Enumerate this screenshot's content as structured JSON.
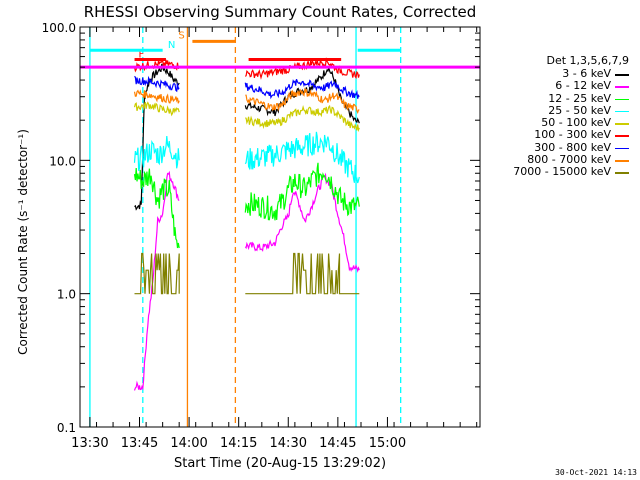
{
  "chart_data": {
    "type": "line",
    "title": "RHESSI Observing Summary Count Rates, Corrected",
    "ylabel": "Corrected Count Rate (s⁻¹ detector⁻¹)",
    "xlabel": "Start Time (20-Aug-15 13:29:02)",
    "ylog": true,
    "ylim": [
      0.1,
      100
    ],
    "xlim_min": [
      -3,
      118
    ],
    "x_unit": "minutes after 13:30",
    "y_ticks": [
      "0.1",
      "1.0",
      "10.0",
      "100.0"
    ],
    "y_tick_values": [
      0.1,
      1,
      10,
      100
    ],
    "x_ticks": [
      {
        "min": 0,
        "label": "13:30"
      },
      {
        "min": 15,
        "label": "13:45"
      },
      {
        "min": 30,
        "label": "14:00"
      },
      {
        "min": 45,
        "label": "14:15"
      },
      {
        "min": 60,
        "label": "14:30"
      },
      {
        "min": 75,
        "label": "14:45"
      },
      {
        "min": 90,
        "label": "15:00"
      }
    ],
    "legend_header": "Det 1,3,5,6,7,9",
    "legend_placement": "right",
    "series": [
      {
        "name": "3 - 6 keV",
        "color": "#000000",
        "seg1": [
          [
            13.5,
            4.5
          ],
          [
            15.5,
            4.6
          ],
          [
            16.5,
            30
          ],
          [
            18,
            40
          ],
          [
            20,
            45
          ],
          [
            22,
            50
          ],
          [
            24,
            45
          ],
          [
            25.5,
            40
          ],
          [
            27,
            38
          ]
        ],
        "seg2": [
          [
            47,
            26
          ],
          [
            53,
            24
          ],
          [
            56,
            23
          ],
          [
            60,
            30
          ],
          [
            63,
            33
          ],
          [
            66,
            34
          ],
          [
            70,
            42
          ],
          [
            72,
            50
          ],
          [
            74,
            40
          ],
          [
            76,
            28
          ],
          [
            80,
            20
          ],
          [
            81.5,
            19
          ]
        ]
      },
      {
        "name": "6 - 12 keV",
        "color": "#ff00ff",
        "seg1": [
          [
            13.5,
            0.2
          ],
          [
            16,
            0.2
          ],
          [
            17.5,
            0.6
          ],
          [
            19,
            1.2
          ],
          [
            20.5,
            3.5
          ],
          [
            22,
            4
          ],
          [
            23.5,
            8
          ],
          [
            25,
            7
          ],
          [
            27,
            5
          ]
        ],
        "seg2": [
          [
            47,
            2.3
          ],
          [
            52,
            2.2
          ],
          [
            56,
            2.4
          ],
          [
            58,
            3.2
          ],
          [
            60,
            3.8
          ],
          [
            61.5,
            6
          ],
          [
            63,
            5
          ],
          [
            65,
            3.5
          ],
          [
            67,
            4.5
          ],
          [
            69,
            6
          ],
          [
            71,
            7.5
          ],
          [
            73,
            6.5
          ],
          [
            75,
            4
          ],
          [
            77,
            2.5
          ],
          [
            78.5,
            1.6
          ],
          [
            81.5,
            1.5
          ]
        ]
      },
      {
        "name": "12 - 25 keV",
        "color": "#00ff00",
        "seg1": [
          [
            13.5,
            8
          ],
          [
            16,
            7
          ],
          [
            18.5,
            8
          ],
          [
            20.5,
            5
          ],
          [
            22,
            6
          ],
          [
            24,
            6
          ],
          [
            26,
            2.5
          ],
          [
            27,
            2.2
          ]
        ],
        "seg2": [
          [
            47,
            4.8
          ],
          [
            53,
            4.5
          ],
          [
            56,
            4.2
          ],
          [
            58,
            4.8
          ],
          [
            60,
            6
          ],
          [
            62,
            7
          ],
          [
            65,
            6
          ],
          [
            68,
            7.5
          ],
          [
            71,
            8.5
          ],
          [
            73,
            7
          ],
          [
            76,
            5
          ],
          [
            79,
            4.5
          ],
          [
            81.5,
            4.5
          ]
        ]
      },
      {
        "name": "25 - 50 keV",
        "color": "#00ffff",
        "seg1": [
          [
            13.5,
            10
          ],
          [
            16,
            10.5
          ],
          [
            18.5,
            12
          ],
          [
            21,
            11
          ],
          [
            23,
            13
          ],
          [
            25,
            12
          ],
          [
            27,
            10
          ]
        ],
        "seg2": [
          [
            47,
            10
          ],
          [
            52,
            10.5
          ],
          [
            56,
            11
          ],
          [
            60,
            12
          ],
          [
            64,
            12.5
          ],
          [
            68,
            13.5
          ],
          [
            72,
            14
          ],
          [
            76,
            10
          ],
          [
            80,
            8
          ],
          [
            81.5,
            7.5
          ]
        ]
      },
      {
        "name": "50 - 100 keV",
        "color": "#cccc00",
        "seg1": [
          [
            13.5,
            25
          ],
          [
            18,
            26
          ],
          [
            22,
            24
          ],
          [
            27,
            23
          ]
        ],
        "seg2": [
          [
            47,
            20
          ],
          [
            53,
            19
          ],
          [
            57,
            19
          ],
          [
            61,
            22
          ],
          [
            65,
            24
          ],
          [
            69,
            23
          ],
          [
            73,
            24
          ],
          [
            76,
            21
          ],
          [
            79,
            18
          ],
          [
            81.5,
            17.5
          ]
        ]
      },
      {
        "name": "100 - 300 keV",
        "color": "#ff0000",
        "seg1": [
          [
            13.5,
            50
          ],
          [
            18,
            52
          ],
          [
            23,
            53
          ],
          [
            27,
            51
          ]
        ],
        "seg2": [
          [
            47,
            45
          ],
          [
            52,
            44
          ],
          [
            56,
            46
          ],
          [
            60,
            48
          ],
          [
            64,
            51
          ],
          [
            68,
            54
          ],
          [
            72,
            55
          ],
          [
            75,
            48
          ],
          [
            78,
            45
          ],
          [
            81.5,
            44
          ]
        ]
      },
      {
        "name": "300 - 800 keV",
        "color": "#0000ff",
        "seg1": [
          [
            13.5,
            40
          ],
          [
            18,
            39
          ],
          [
            23,
            37
          ],
          [
            27,
            35
          ]
        ],
        "seg2": [
          [
            47,
            36
          ],
          [
            51,
            34
          ],
          [
            55,
            31
          ],
          [
            58,
            32
          ],
          [
            61,
            37
          ],
          [
            64,
            39
          ],
          [
            68,
            36
          ],
          [
            71,
            35
          ],
          [
            74,
            38
          ],
          [
            77,
            33
          ],
          [
            81.5,
            30
          ]
        ]
      },
      {
        "name": "800 - 7000 keV",
        "color": "#ff8000",
        "seg1": [
          [
            13.5,
            32
          ],
          [
            18,
            31
          ],
          [
            23,
            29
          ],
          [
            27,
            28
          ]
        ],
        "seg2": [
          [
            47,
            29
          ],
          [
            51,
            27
          ],
          [
            55,
            25
          ],
          [
            58,
            26
          ],
          [
            61,
            31
          ],
          [
            64,
            33
          ],
          [
            68,
            31
          ],
          [
            71,
            28
          ],
          [
            74,
            31
          ],
          [
            77,
            26
          ],
          [
            81.5,
            24
          ]
        ]
      },
      {
        "name": "7000 - 15000 keV",
        "color": "#808000",
        "seg1": [
          [
            13.5,
            1.0
          ],
          [
            14,
            2.0
          ],
          [
            27,
            2.0
          ],
          [
            27,
            1.0
          ]
        ],
        "seg2": [
          [
            47,
            1.0
          ],
          [
            61,
            1.0
          ],
          [
            61,
            2.0
          ],
          [
            75.5,
            2.0
          ],
          [
            75.5,
            1.0
          ],
          [
            81.5,
            1.0
          ]
        ]
      }
    ],
    "state_bars": [
      {
        "label": "F",
        "color": "#ff0000",
        "y": 57,
        "x0": 13.5,
        "x1": 23
      },
      {
        "label": "N",
        "color": "#00ffff",
        "y": 67,
        "x0": 0,
        "x1": 22
      },
      {
        "label": "S",
        "color": "#ff8000",
        "y": 78,
        "x0": 31,
        "x1": 44
      },
      {
        "label": "",
        "color": "#ff0000",
        "y": 57,
        "x0": 48,
        "x1": 76
      },
      {
        "label": "",
        "color": "#00ffff",
        "y": 67,
        "x0": 81,
        "x1": 94
      }
    ],
    "hline": {
      "y": 50,
      "color": "#ff00ff"
    },
    "vlines": [
      {
        "x": 0,
        "color": "#00ffff",
        "style": "solid"
      },
      {
        "x": 16,
        "color": "#00ffff",
        "style": "dashed"
      },
      {
        "x": 29.5,
        "color": "#ff8000",
        "style": "solid"
      },
      {
        "x": 44,
        "color": "#ff8000",
        "style": "dashed"
      },
      {
        "x": 80.5,
        "color": "#00ffff",
        "style": "solid"
      },
      {
        "x": 94,
        "color": "#00ffff",
        "style": "dashed"
      }
    ]
  },
  "footer_date": "30-Oct-2021 14:13"
}
